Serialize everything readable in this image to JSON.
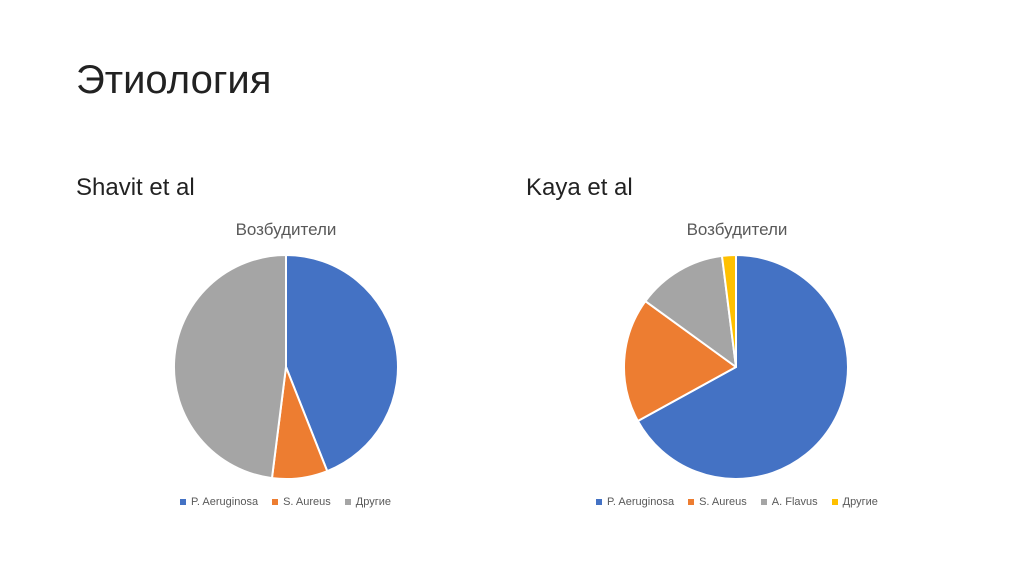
{
  "slide": {
    "title": "Этиология",
    "left_label": "Shavit et al",
    "right_label": "Kaya et al"
  },
  "chart_data": [
    {
      "type": "pie",
      "title": "Возбудители",
      "categories": [
        "P. Aeruginosa",
        "S. Aureus",
        "Другие"
      ],
      "values": [
        44,
        8,
        48
      ],
      "colors": [
        "#4472C4",
        "#ED7D31",
        "#A5A5A5"
      ],
      "legend": "bottom"
    },
    {
      "type": "pie",
      "title": "Возбудители",
      "categories": [
        "P. Aeruginosa",
        "S. Aureus",
        "A. Flavus",
        "Другие"
      ],
      "values": [
        67,
        18,
        13,
        2
      ],
      "colors": [
        "#4472C4",
        "#ED7D31",
        "#A5A5A5",
        "#FFC000"
      ],
      "legend": "bottom"
    }
  ]
}
